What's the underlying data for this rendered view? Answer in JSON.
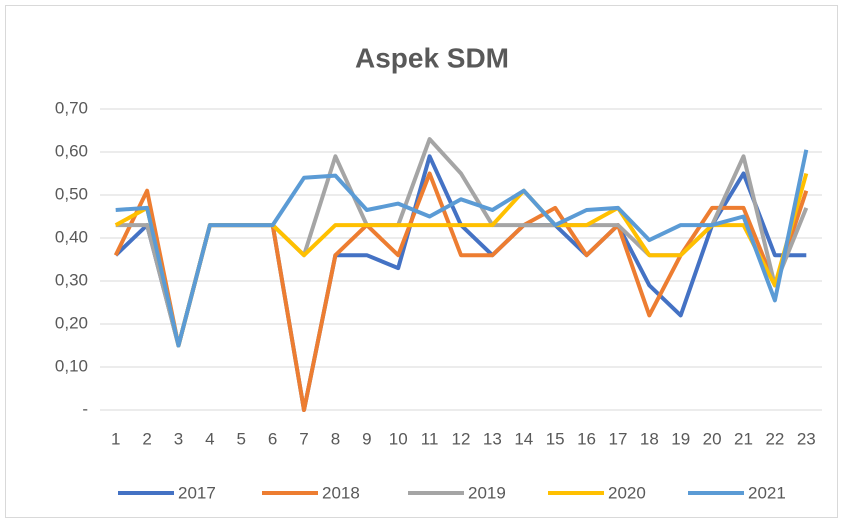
{
  "chart_data": {
    "type": "line",
    "title": "Aspek SDM",
    "categories": [
      "1",
      "2",
      "3",
      "4",
      "5",
      "6",
      "7",
      "8",
      "9",
      "10",
      "11",
      "12",
      "13",
      "14",
      "15",
      "16",
      "17",
      "18",
      "19",
      "20",
      "21",
      "22",
      "23"
    ],
    "series": [
      {
        "name": "2017",
        "color": "#4472C4",
        "values": [
          0.36,
          0.43,
          0.15,
          0.43,
          0.43,
          0.43,
          0,
          0.36,
          0.36,
          0.33,
          0.59,
          0.43,
          0.36,
          0.43,
          0.43,
          0.36,
          0.43,
          0.29,
          0.22,
          0.43,
          0.55,
          0.36,
          0.36
        ]
      },
      {
        "name": "2018",
        "color": "#ED7D31",
        "values": [
          0.36,
          0.51,
          0.15,
          0.43,
          0.43,
          0.43,
          0,
          0.36,
          0.43,
          0.36,
          0.55,
          0.36,
          0.36,
          0.43,
          0.47,
          0.36,
          0.43,
          0.22,
          0.36,
          0.47,
          0.47,
          0.29,
          0.51
        ]
      },
      {
        "name": "2019",
        "color": "#A5A5A5",
        "values": [
          0.43,
          0.43,
          0.15,
          0.43,
          0.43,
          0.43,
          0.36,
          0.59,
          0.43,
          0.43,
          0.63,
          0.55,
          0.43,
          0.43,
          0.43,
          0.43,
          0.43,
          0.36,
          0.36,
          0.43,
          0.59,
          0.29,
          0.47
        ]
      },
      {
        "name": "2020",
        "color": "#FFC000",
        "values": [
          0.43,
          0.47,
          0.15,
          0.43,
          0.43,
          0.43,
          0.36,
          0.43,
          0.43,
          0.43,
          0.43,
          0.43,
          0.43,
          0.51,
          0.43,
          0.43,
          0.47,
          0.36,
          0.36,
          0.43,
          0.43,
          0.29,
          0.55
        ]
      },
      {
        "name": "2021",
        "color": "#5B9BD5",
        "values": [
          0.465,
          0.47,
          0.15,
          0.43,
          0.43,
          0.43,
          0.54,
          0.545,
          0.465,
          0.48,
          0.45,
          0.49,
          0.465,
          0.51,
          0.43,
          0.465,
          0.47,
          0.395,
          0.43,
          0.43,
          0.45,
          0.255,
          0.605
        ]
      }
    ],
    "ylim": [
      0,
      0.7
    ],
    "yticks": [
      {
        "value": 0,
        "label": "-"
      },
      {
        "value": 0.1,
        "label": "0,10"
      },
      {
        "value": 0.2,
        "label": "0,20"
      },
      {
        "value": 0.3,
        "label": "0,30"
      },
      {
        "value": 0.4,
        "label": "0,40"
      },
      {
        "value": 0.5,
        "label": "0,50"
      },
      {
        "value": 0.6,
        "label": "0,60"
      },
      {
        "value": 0.7,
        "label": "0,70"
      }
    ],
    "grid": true,
    "legend": "bottom"
  }
}
